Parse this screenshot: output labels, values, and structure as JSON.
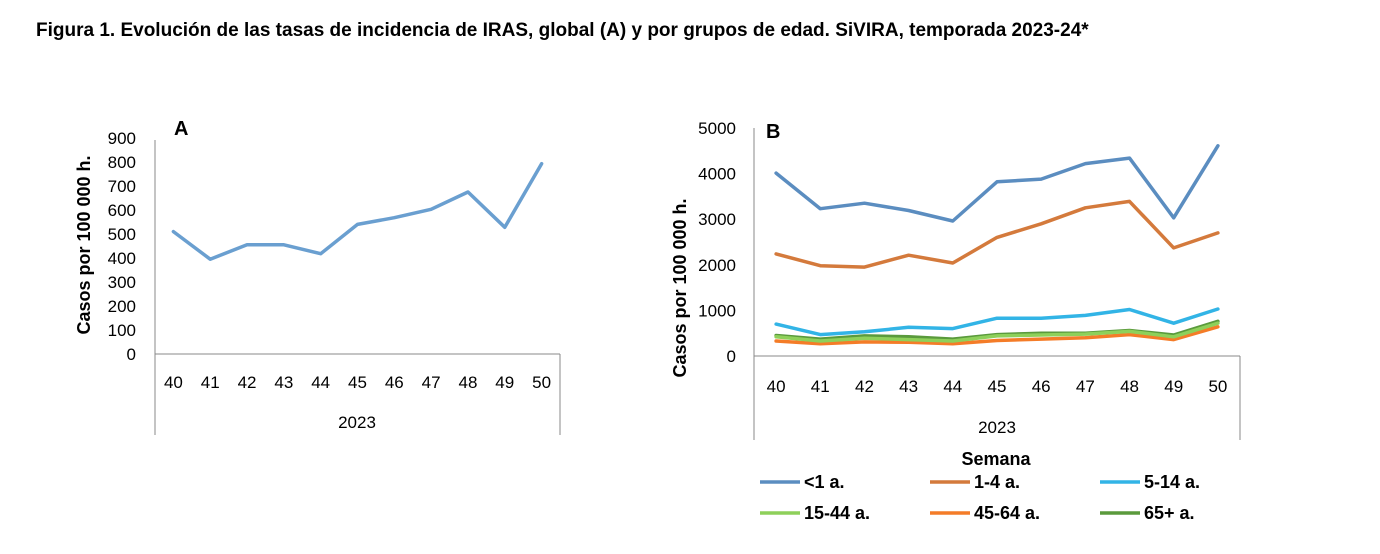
{
  "title": "Figura 1. Evolución de las tasas de incidencia de IRAS, global (A) y por grupos de edad. SiVIRA, temporada 2023-24*",
  "chart_data": [
    {
      "type": "line",
      "panel": "A",
      "ylabel": "Casos por 100 000 h.",
      "xlabel": "",
      "x": [
        "40",
        "41",
        "42",
        "43",
        "44",
        "45",
        "46",
        "47",
        "48",
        "49",
        "50"
      ],
      "year": "2023",
      "ylim": [
        0,
        900
      ],
      "yticks": [
        0,
        100,
        200,
        300,
        400,
        500,
        600,
        700,
        800,
        900
      ],
      "series": [
        {
          "name": "Global",
          "color": "#6a9fd0",
          "values": [
            510,
            395,
            455,
            455,
            418,
            540,
            568,
            603,
            675,
            528,
            793
          ]
        }
      ]
    },
    {
      "type": "line",
      "panel": "B",
      "ylabel": "Casos por 100 000 h.",
      "xlabel": "Semana",
      "x": [
        "40",
        "41",
        "42",
        "43",
        "44",
        "45",
        "46",
        "47",
        "48",
        "49",
        "50"
      ],
      "year": "2023",
      "ylim": [
        0,
        5000
      ],
      "yticks": [
        0,
        1000,
        2000,
        3000,
        4000,
        5000
      ],
      "legend_position": "bottom",
      "series": [
        {
          "name": "<1 a.",
          "color": "#5b8dc0",
          "values": [
            4010,
            3230,
            3350,
            3190,
            2960,
            3820,
            3880,
            4220,
            4340,
            3030,
            4610
          ]
        },
        {
          "name": "1-4 a.",
          "color": "#d47a3c",
          "values": [
            2240,
            1980,
            1950,
            2210,
            2040,
            2600,
            2900,
            3250,
            3390,
            2370,
            2700
          ]
        },
        {
          "name": "5-14 a.",
          "color": "#32b4e6",
          "values": [
            700,
            470,
            530,
            630,
            600,
            830,
            830,
            890,
            1020,
            720,
            1030
          ]
        },
        {
          "name": "15-44 a.",
          "color": "#8ed05a",
          "values": [
            420,
            330,
            390,
            360,
            330,
            440,
            460,
            480,
            540,
            420,
            720
          ]
        },
        {
          "name": "45-64 a.",
          "color": "#f47c28",
          "values": [
            330,
            270,
            310,
            300,
            270,
            340,
            370,
            400,
            470,
            360,
            640
          ]
        },
        {
          "name": "65+ a.",
          "color": "#5a9a3c",
          "values": [
            450,
            370,
            440,
            420,
            370,
            470,
            500,
            500,
            560,
            460,
            760
          ]
        }
      ]
    }
  ]
}
